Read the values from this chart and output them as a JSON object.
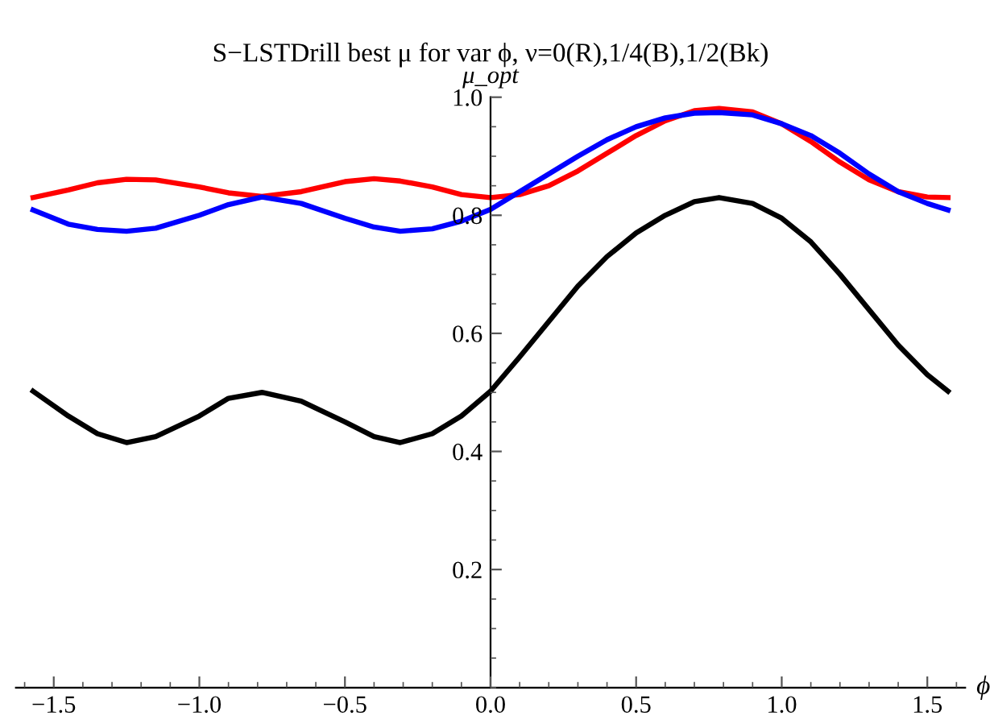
{
  "chart_data": {
    "type": "line",
    "title": "S−LSTDrill best μ for var ϕ, ν=0(R),1/4(B),1/2(Bk)",
    "xlabel": "ϕ",
    "ylabel": "μ_opt",
    "x": [
      -1.571,
      -1.45,
      -1.35,
      -1.25,
      -1.15,
      -1.0,
      -0.9,
      -0.785,
      -0.65,
      -0.5,
      -0.4,
      -0.31,
      -0.2,
      -0.1,
      0,
      0.1,
      0.2,
      0.3,
      0.4,
      0.5,
      0.6,
      0.7,
      0.785,
      0.9,
      1.0,
      1.1,
      1.2,
      1.3,
      1.4,
      1.5,
      1.571
    ],
    "series": [
      {
        "color": "#ff0000",
        "values": [
          0.83,
          0.843,
          0.855,
          0.861,
          0.86,
          0.848,
          0.838,
          0.832,
          0.84,
          0.857,
          0.862,
          0.858,
          0.848,
          0.835,
          0.83,
          0.835,
          0.85,
          0.875,
          0.905,
          0.935,
          0.96,
          0.977,
          0.981,
          0.975,
          0.955,
          0.925,
          0.89,
          0.86,
          0.84,
          0.831,
          0.83
        ]
      },
      {
        "color": "#0000ff",
        "values": [
          0.809,
          0.785,
          0.776,
          0.773,
          0.778,
          0.8,
          0.818,
          0.831,
          0.82,
          0.795,
          0.78,
          0.773,
          0.777,
          0.79,
          0.81,
          0.84,
          0.87,
          0.9,
          0.928,
          0.95,
          0.965,
          0.973,
          0.974,
          0.97,
          0.955,
          0.935,
          0.905,
          0.87,
          0.84,
          0.82,
          0.809
        ]
      },
      {
        "color": "#000000",
        "values": [
          0.502,
          0.46,
          0.43,
          0.415,
          0.425,
          0.46,
          0.49,
          0.5,
          0.485,
          0.45,
          0.425,
          0.415,
          0.43,
          0.46,
          0.502,
          0.56,
          0.62,
          0.68,
          0.73,
          0.77,
          0.8,
          0.823,
          0.83,
          0.82,
          0.795,
          0.755,
          0.7,
          0.64,
          0.58,
          0.53,
          0.502
        ]
      }
    ],
    "xlim": [
      -1.63,
      1.63
    ],
    "ylim": [
      0,
      1.0
    ],
    "xticks": [
      {
        "value": -1.5,
        "label": "−1.5"
      },
      {
        "value": -1.0,
        "label": "−1.0"
      },
      {
        "value": -0.5,
        "label": "−0.5"
      },
      {
        "value": 0.0,
        "label": "0.0"
      },
      0.5,
      {
        "value": 1.0,
        "label": "1.0"
      },
      1.5
    ],
    "yticks": [
      0.2,
      0.4,
      0.6,
      0.8,
      {
        "value": 1.0,
        "label": "1.0"
      }
    ],
    "grid": false,
    "marker": "none",
    "line_style": "solid"
  }
}
